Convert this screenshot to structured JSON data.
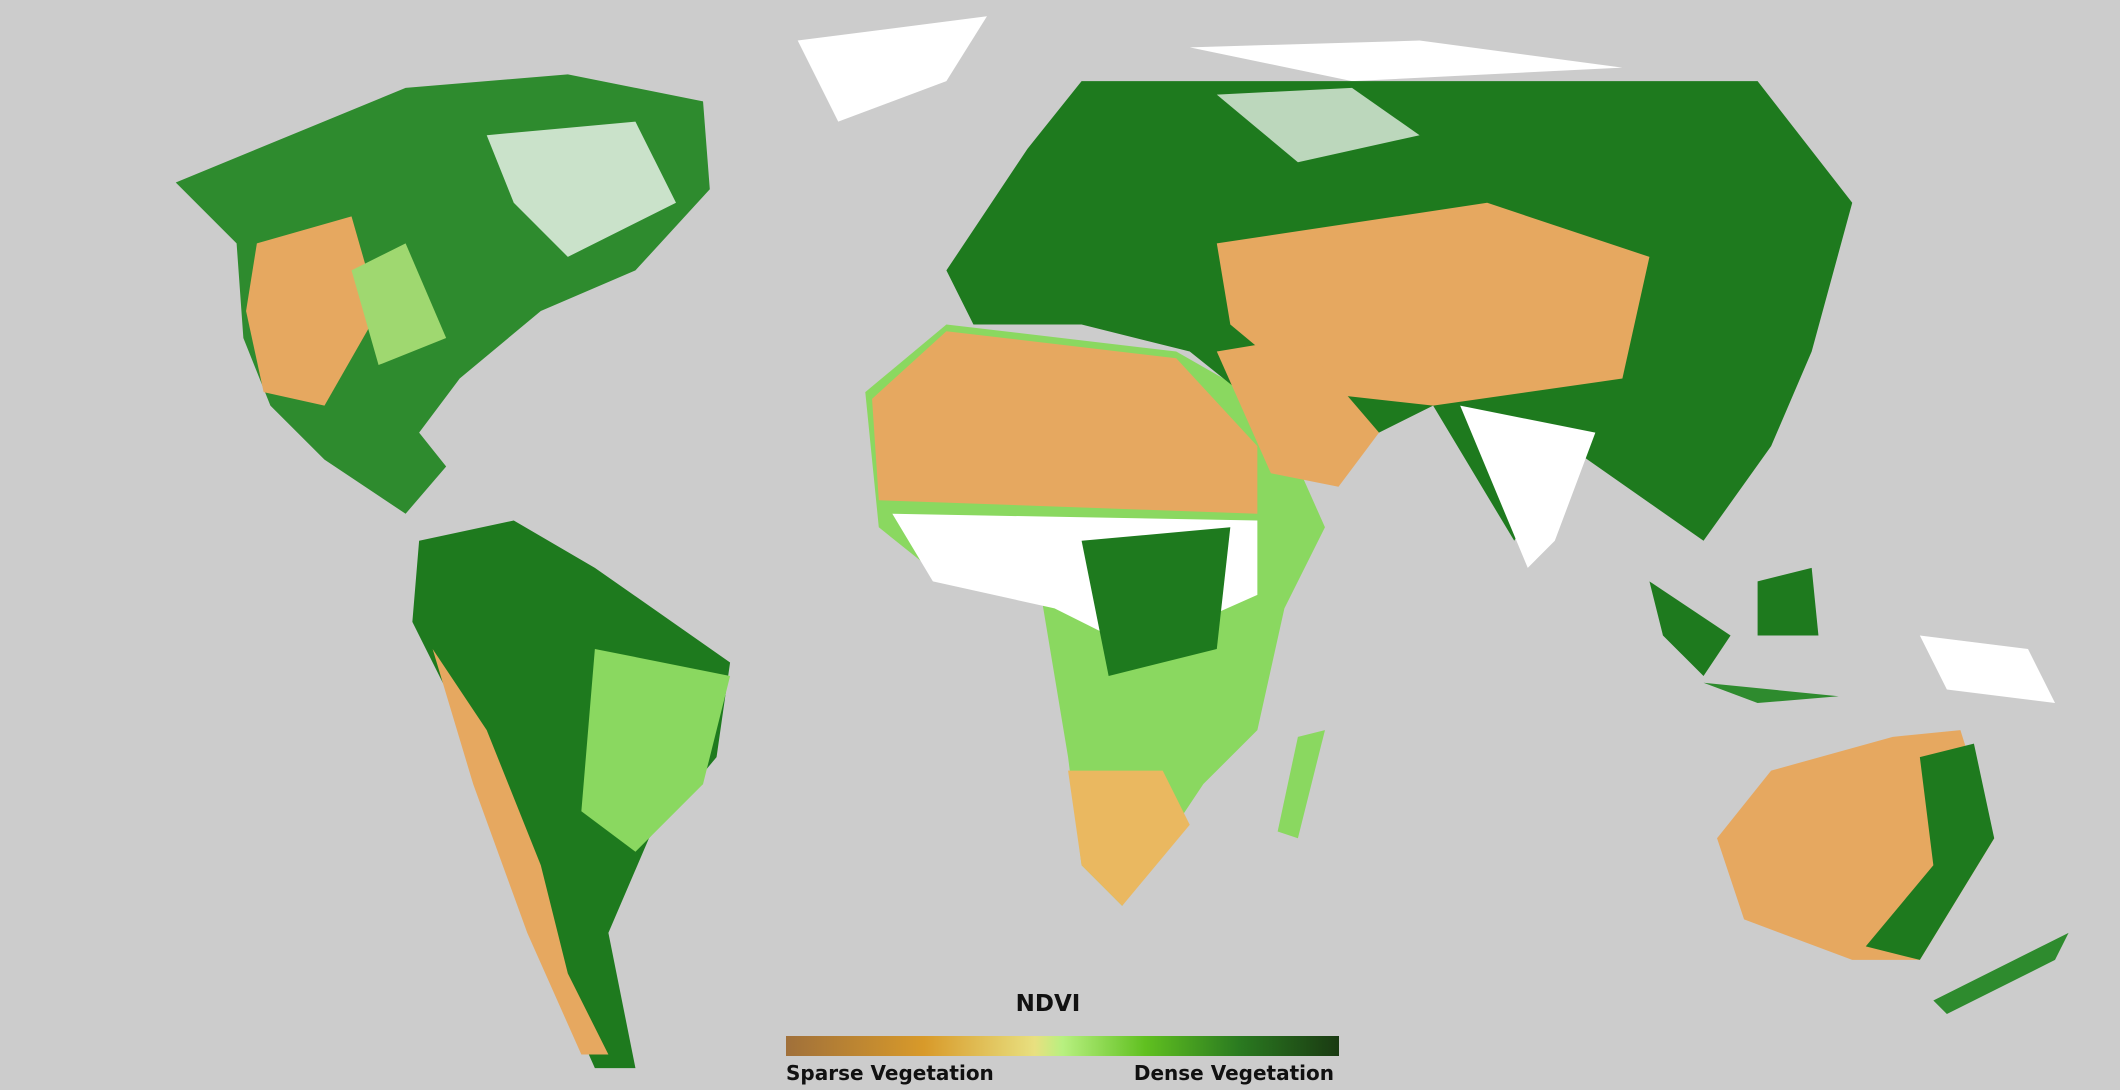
{
  "legend": {
    "title": "NDVI",
    "low_label": "Sparse Vegetation",
    "high_label": "Dense Vegetation"
  }
}
